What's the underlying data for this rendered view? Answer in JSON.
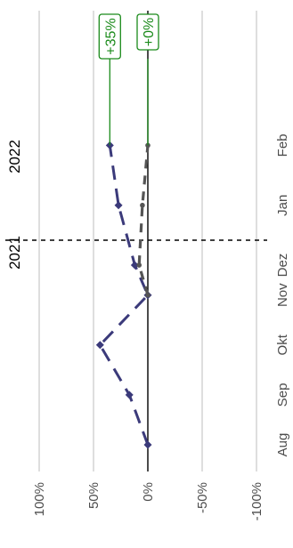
{
  "chart_data": {
    "type": "line",
    "orientation": "rotated-90",
    "categories": [
      "Aug",
      "Sep",
      "Okt",
      "Nov",
      "Dez",
      "Jan",
      "Feb"
    ],
    "x_positions": [
      0,
      1,
      2,
      3,
      3.6,
      4.8,
      6
    ],
    "value_axis": {
      "ticks": [
        100,
        50,
        0,
        -50,
        -100
      ],
      "tick_labels": [
        "100%",
        "50%",
        "0%",
        "-50%",
        "-100%"
      ],
      "range": [
        -100,
        100
      ],
      "grid": true
    },
    "year_labels": [
      "2021",
      "2022"
    ],
    "year_divider_at": 4.1,
    "series": [
      {
        "color": "#3b3a7a",
        "dash": "dashed",
        "x": [
          0,
          1,
          2,
          3,
          3.6,
          4.8,
          6
        ],
        "values": [
          0,
          17,
          44,
          0,
          12,
          27,
          35
        ]
      },
      {
        "color": "#555555",
        "dash": "dashed",
        "x": [
          3,
          3.6,
          4.8,
          6
        ],
        "values": [
          0,
          8,
          5,
          0
        ]
      }
    ],
    "annotations": [
      {
        "label": "+35%",
        "value": 35,
        "color": "#1a8a1a"
      },
      {
        "label": "+0%",
        "value": 0,
        "color": "#1a8a1a"
      }
    ]
  }
}
